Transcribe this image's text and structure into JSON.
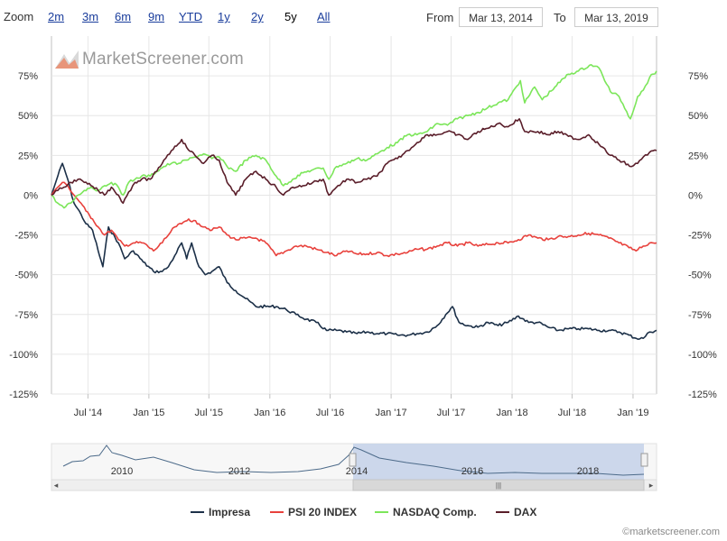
{
  "zoom": {
    "label": "Zoom",
    "buttons": [
      {
        "key": "2m",
        "label": "2m",
        "active": false
      },
      {
        "key": "3m",
        "label": "3m",
        "active": false
      },
      {
        "key": "6m",
        "label": "6m",
        "active": false
      },
      {
        "key": "9m",
        "label": "9m",
        "active": false
      },
      {
        "key": "ytd",
        "label": "YTD",
        "active": false
      },
      {
        "key": "1y",
        "label": "1y",
        "active": false
      },
      {
        "key": "2y",
        "label": "2y",
        "active": false
      },
      {
        "key": "5y",
        "label": "5y",
        "active": true
      },
      {
        "key": "all",
        "label": "All",
        "active": false
      }
    ]
  },
  "range": {
    "from_label": "From",
    "from_value": "Mar 13, 2014",
    "to_label": "To",
    "to_value": "Mar 13, 2019"
  },
  "logo": {
    "text": "MarketScreener.com"
  },
  "credit": "©marketscreener.com",
  "navigator": {
    "year_labels": [
      "2010",
      "2012",
      "2014",
      "2016",
      "2018"
    ],
    "handle_glyph": "|||",
    "scroll_left": "◂",
    "scroll_right": "▸"
  },
  "chart_data": {
    "type": "line",
    "x_ticks": [
      "Jul '14",
      "Jan '15",
      "Jul '15",
      "Jan '16",
      "Jul '16",
      "Jan '17",
      "Jul '17",
      "Jan '18",
      "Jul '18",
      "Jan '19"
    ],
    "y_ticks": [
      "75%",
      "50%",
      "25%",
      "0%",
      "-25%",
      "-50%",
      "-75%",
      "-100%",
      "-125%"
    ],
    "ylim": [
      -125,
      100
    ],
    "xlim": [
      "2014-03-13",
      "2019-03-13"
    ],
    "grid": true,
    "legend_position": "bottom",
    "series": [
      {
        "name": "Impresa",
        "color": "#1c3048",
        "x": [
          "2014-03-13",
          "2014-04-01",
          "2014-04-15",
          "2014-05-01",
          "2014-05-20",
          "2014-06-10",
          "2014-06-25",
          "2014-07-15",
          "2014-08-01",
          "2014-08-15",
          "2014-09-01",
          "2014-10-01",
          "2014-10-20",
          "2014-11-15",
          "2014-12-15",
          "2015-01-15",
          "2015-02-10",
          "2015-03-01",
          "2015-03-20",
          "2015-04-10",
          "2015-04-25",
          "2015-05-10",
          "2015-06-01",
          "2015-06-20",
          "2015-07-10",
          "2015-08-01",
          "2015-08-25",
          "2015-09-20",
          "2015-10-20",
          "2015-11-20",
          "2015-12-20",
          "2016-01-20",
          "2016-02-20",
          "2016-03-20",
          "2016-04-20",
          "2016-05-20",
          "2016-06-20",
          "2016-07-20",
          "2016-08-20",
          "2016-09-20",
          "2016-10-20",
          "2016-11-20",
          "2016-12-20",
          "2017-01-20",
          "2017-02-20",
          "2017-03-20",
          "2017-04-20",
          "2017-05-20",
          "2017-06-15",
          "2017-07-05",
          "2017-07-25",
          "2017-08-20",
          "2017-09-20",
          "2017-10-20",
          "2017-11-20",
          "2017-12-20",
          "2018-01-20",
          "2018-02-20",
          "2018-03-20",
          "2018-04-20",
          "2018-05-20",
          "2018-06-20",
          "2018-07-20",
          "2018-08-20",
          "2018-09-20",
          "2018-10-20",
          "2018-11-20",
          "2018-12-20",
          "2019-01-10",
          "2019-02-01",
          "2019-02-20",
          "2019-03-13"
        ],
        "values": [
          0,
          12,
          20,
          10,
          -5,
          -12,
          -18,
          -22,
          -35,
          -45,
          -20,
          -30,
          -40,
          -35,
          -42,
          -48,
          -48,
          -45,
          -38,
          -30,
          -40,
          -30,
          -45,
          -50,
          -48,
          -45,
          -55,
          -60,
          -65,
          -70,
          -70,
          -70,
          -72,
          -75,
          -78,
          -80,
          -85,
          -85,
          -86,
          -87,
          -86,
          -87,
          -87,
          -88,
          -88,
          -87,
          -86,
          -82,
          -75,
          -70,
          -80,
          -82,
          -83,
          -80,
          -82,
          -80,
          -76,
          -80,
          -80,
          -83,
          -85,
          -84,
          -84,
          -84,
          -85,
          -85,
          -86,
          -88,
          -90,
          -90,
          -86,
          -85
        ]
      },
      {
        "name": "PSI 20 INDEX",
        "color": "#e8413c",
        "x": [
          "2014-03-13",
          "2014-04-01",
          "2014-04-15",
          "2014-05-01",
          "2014-05-20",
          "2014-06-10",
          "2014-06-25",
          "2014-07-15",
          "2014-08-01",
          "2014-08-20",
          "2014-09-10",
          "2014-10-01",
          "2014-10-20",
          "2014-11-15",
          "2014-12-15",
          "2015-01-15",
          "2015-02-10",
          "2015-03-01",
          "2015-03-20",
          "2015-04-10",
          "2015-05-01",
          "2015-06-01",
          "2015-06-20",
          "2015-07-10",
          "2015-08-01",
          "2015-08-25",
          "2015-09-20",
          "2015-10-20",
          "2015-11-20",
          "2015-12-20",
          "2016-01-20",
          "2016-02-20",
          "2016-03-20",
          "2016-04-20",
          "2016-05-20",
          "2016-06-20",
          "2016-07-20",
          "2016-08-20",
          "2016-09-20",
          "2016-10-20",
          "2016-11-20",
          "2016-12-20",
          "2017-01-20",
          "2017-02-20",
          "2017-03-20",
          "2017-04-20",
          "2017-05-20",
          "2017-06-20",
          "2017-07-20",
          "2017-08-20",
          "2017-09-20",
          "2017-10-20",
          "2017-11-20",
          "2017-12-20",
          "2018-01-20",
          "2018-02-20",
          "2018-03-20",
          "2018-04-20",
          "2018-05-20",
          "2018-06-20",
          "2018-07-20",
          "2018-08-20",
          "2018-09-20",
          "2018-10-20",
          "2018-11-20",
          "2018-12-20",
          "2019-01-10",
          "2019-02-01",
          "2019-02-20",
          "2019-03-13"
        ],
        "values": [
          0,
          5,
          8,
          6,
          0,
          -5,
          -10,
          -15,
          -20,
          -25,
          -22,
          -28,
          -32,
          -30,
          -30,
          -35,
          -30,
          -25,
          -20,
          -18,
          -15,
          -18,
          -20,
          -22,
          -20,
          -25,
          -28,
          -27,
          -27,
          -30,
          -38,
          -35,
          -32,
          -32,
          -34,
          -36,
          -38,
          -35,
          -37,
          -37,
          -36,
          -38,
          -37,
          -36,
          -34,
          -34,
          -32,
          -30,
          -32,
          -30,
          -32,
          -31,
          -30,
          -30,
          -28,
          -25,
          -27,
          -28,
          -26,
          -26,
          -25,
          -24,
          -25,
          -27,
          -30,
          -33,
          -35,
          -32,
          -30,
          -30
        ]
      },
      {
        "name": "NASDAQ Comp.",
        "color": "#7ce65a",
        "x": [
          "2014-03-13",
          "2014-04-01",
          "2014-04-20",
          "2014-05-10",
          "2014-06-01",
          "2014-06-20",
          "2014-07-10",
          "2014-08-01",
          "2014-08-20",
          "2014-09-10",
          "2014-10-01",
          "2014-10-15",
          "2014-11-01",
          "2014-11-20",
          "2014-12-10",
          "2015-01-05",
          "2015-01-25",
          "2015-02-15",
          "2015-03-10",
          "2015-04-01",
          "2015-04-25",
          "2015-05-20",
          "2015-06-15",
          "2015-07-10",
          "2015-08-01",
          "2015-08-25",
          "2015-09-20",
          "2015-10-20",
          "2015-11-20",
          "2015-12-20",
          "2016-01-20",
          "2016-02-11",
          "2016-03-10",
          "2016-04-10",
          "2016-05-10",
          "2016-06-10",
          "2016-06-27",
          "2016-07-20",
          "2016-08-20",
          "2016-09-20",
          "2016-10-20",
          "2016-11-20",
          "2016-12-20",
          "2017-01-20",
          "2017-02-20",
          "2017-03-20",
          "2017-04-20",
          "2017-05-20",
          "2017-06-20",
          "2017-07-20",
          "2017-08-20",
          "2017-09-20",
          "2017-10-20",
          "2017-11-20",
          "2017-12-20",
          "2018-01-26",
          "2018-02-08",
          "2018-03-10",
          "2018-04-02",
          "2018-05-10",
          "2018-06-20",
          "2018-07-20",
          "2018-08-28",
          "2018-09-20",
          "2018-10-25",
          "2018-11-20",
          "2018-12-24",
          "2019-01-15",
          "2019-02-01",
          "2019-02-20",
          "2019-03-13"
        ],
        "values": [
          0,
          -5,
          -8,
          -5,
          0,
          3,
          5,
          3,
          6,
          8,
          5,
          0,
          8,
          10,
          12,
          12,
          15,
          18,
          20,
          20,
          22,
          24,
          26,
          23,
          24,
          18,
          15,
          22,
          25,
          22,
          12,
          6,
          10,
          14,
          16,
          17,
          10,
          18,
          20,
          23,
          22,
          26,
          30,
          33,
          38,
          38,
          40,
          45,
          44,
          48,
          50,
          52,
          55,
          58,
          60,
          72,
          58,
          68,
          60,
          68,
          76,
          78,
          82,
          80,
          65,
          62,
          48,
          62,
          66,
          74,
          78
        ]
      },
      {
        "name": "DAX",
        "color": "#5a1e2a",
        "x": [
          "2014-03-13",
          "2014-04-01",
          "2014-04-20",
          "2014-05-10",
          "2014-06-01",
          "2014-06-20",
          "2014-07-10",
          "2014-08-01",
          "2014-08-20",
          "2014-09-10",
          "2014-10-01",
          "2014-10-15",
          "2014-11-01",
          "2014-11-20",
          "2014-12-10",
          "2015-01-05",
          "2015-01-25",
          "2015-02-15",
          "2015-03-10",
          "2015-04-10",
          "2015-04-25",
          "2015-05-20",
          "2015-06-15",
          "2015-07-10",
          "2015-08-01",
          "2015-08-25",
          "2015-09-20",
          "2015-10-20",
          "2015-11-20",
          "2015-12-20",
          "2016-01-20",
          "2016-02-11",
          "2016-03-10",
          "2016-04-10",
          "2016-05-10",
          "2016-06-10",
          "2016-06-27",
          "2016-07-20",
          "2016-08-20",
          "2016-09-20",
          "2016-10-20",
          "2016-11-20",
          "2016-12-20",
          "2017-01-20",
          "2017-02-20",
          "2017-03-20",
          "2017-04-20",
          "2017-05-20",
          "2017-06-20",
          "2017-07-20",
          "2017-08-20",
          "2017-09-20",
          "2017-10-20",
          "2017-11-20",
          "2017-12-20",
          "2018-01-23",
          "2018-02-08",
          "2018-03-20",
          "2018-04-20",
          "2018-05-20",
          "2018-06-20",
          "2018-07-20",
          "2018-08-20",
          "2018-09-20",
          "2018-10-25",
          "2018-11-20",
          "2018-12-27",
          "2019-01-15",
          "2019-02-01",
          "2019-02-20",
          "2019-03-13"
        ],
        "values": [
          0,
          3,
          5,
          8,
          10,
          8,
          6,
          3,
          0,
          5,
          0,
          -5,
          2,
          8,
          10,
          10,
          15,
          22,
          28,
          35,
          30,
          25,
          20,
          25,
          22,
          8,
          0,
          10,
          15,
          10,
          5,
          0,
          5,
          6,
          8,
          10,
          0,
          5,
          10,
          8,
          10,
          12,
          20,
          23,
          28,
          33,
          38,
          38,
          40,
          38,
          35,
          40,
          42,
          45,
          43,
          48,
          40,
          40,
          38,
          40,
          37,
          35,
          38,
          32,
          25,
          22,
          18,
          20,
          24,
          27,
          28
        ]
      }
    ]
  }
}
